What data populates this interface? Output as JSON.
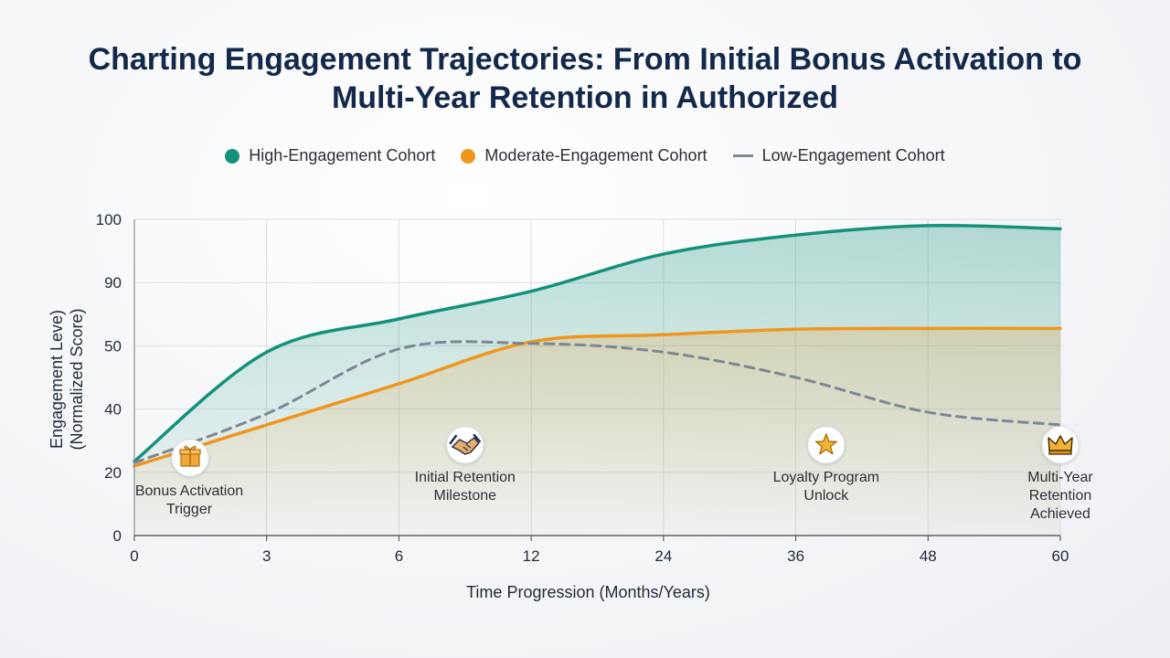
{
  "chart_data": {
    "type": "line",
    "title_lines": [
      "Charting Engagement Trajectories: From Initial Bonus Activation to",
      "Multi-Year Retention in Authorized"
    ],
    "x": [
      "0",
      "3",
      "6",
      "12",
      "24",
      "36",
      "48",
      "60"
    ],
    "xlabel": "Time Progression (Months/Years)",
    "ylabel_lines": [
      "Engagement Leve)",
      "(Normalized Score)"
    ],
    "y_ticks": [
      "0",
      "20",
      "40",
      "50",
      "90",
      "100"
    ],
    "series": [
      {
        "name": "High-Engagement Cohort",
        "color": "#14917a",
        "style": "solid",
        "values": [
          23.5,
          49,
          67,
          84.5,
          94.5,
          97.5,
          99,
          98.5
        ]
      },
      {
        "name": "Moderate-Engagement Cohort",
        "color": "#f0961e",
        "style": "solid",
        "values": [
          22,
          35,
          44,
          52.5,
          57,
          60.5,
          61,
          61
        ]
      },
      {
        "name": "Low-Engagement Cohort",
        "color": "#7d8794",
        "style": "dashed",
        "values": [
          23,
          38.5,
          49.5,
          51.5,
          49,
          45,
          39,
          35
        ]
      }
    ],
    "annotations": [
      {
        "label_lines": [
          "Bonus Activation",
          "Trigger"
        ],
        "icon": "gift-icon",
        "x_index": 0.45
      },
      {
        "label_lines": [
          "Initial Retention",
          "Milestone"
        ],
        "icon": "handshake-icon",
        "x_index": 2.5
      },
      {
        "label_lines": [
          "Loyalty Program",
          "Unlock"
        ],
        "icon": "star-icon",
        "x_index": 5.23
      },
      {
        "label_lines": [
          "Multi-Year",
          "Retention",
          "Achieved"
        ],
        "icon": "crown-icon",
        "x_index": 7
      }
    ],
    "grid": true,
    "legend_position": "top-center"
  }
}
